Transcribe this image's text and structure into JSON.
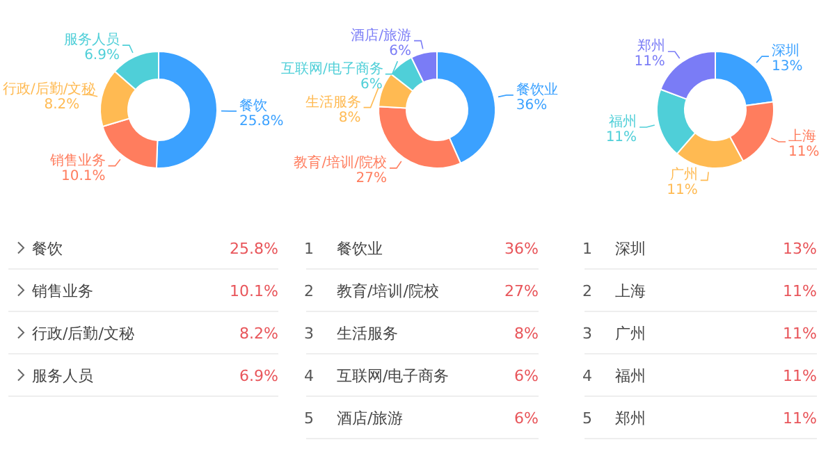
{
  "chart_data": [
    {
      "type": "donut",
      "categories": [
        "餐饮",
        "销售业务",
        "行政/后勤/文秘",
        "服务人员"
      ],
      "values": [
        25.8,
        10.1,
        8.2,
        6.9
      ],
      "value_labels": [
        "25.8%",
        "10.1%",
        "8.2%",
        "6.9%"
      ],
      "colors": [
        "#3ba1ff",
        "#ff7d5e",
        "#ffba52",
        "#4fcfd8"
      ]
    },
    {
      "type": "donut",
      "categories": [
        "餐饮业",
        "教育/培训/院校",
        "生活服务",
        "互联网/电子商务",
        "酒店/旅游"
      ],
      "values": [
        36,
        27,
        8,
        6,
        6
      ],
      "value_labels": [
        "36%",
        "27%",
        "8%",
        "6%",
        "6%"
      ],
      "colors": [
        "#3ba1ff",
        "#ff7d5e",
        "#ffba52",
        "#4fcfd8",
        "#7a7cf6"
      ],
      "annotations": [
        "1",
        "2",
        "3",
        "4",
        "5"
      ]
    },
    {
      "type": "donut",
      "categories": [
        "深圳",
        "上海",
        "广州",
        "福州",
        "郑州"
      ],
      "values": [
        13,
        11,
        11,
        11,
        11
      ],
      "value_labels": [
        "13%",
        "11%",
        "11%",
        "11%",
        "11%"
      ],
      "colors": [
        "#3ba1ff",
        "#ff7d5e",
        "#ffba52",
        "#4fcfd8",
        "#7a7cf6"
      ],
      "annotations": [
        "1",
        "2",
        "3",
        "4",
        "5"
      ]
    }
  ]
}
